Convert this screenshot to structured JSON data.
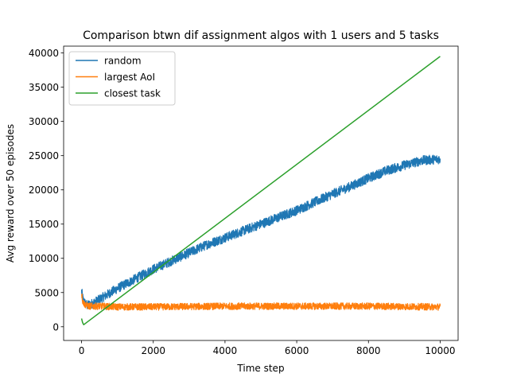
{
  "chart_data": {
    "type": "line",
    "title": "Comparison btwn dif assignment algos with 1 users and 5 tasks",
    "xlabel": "Time step",
    "ylabel": "Avg reward over 50 episodes",
    "xlim": [
      -500,
      10500
    ],
    "ylim": [
      -2000,
      41000
    ],
    "xticks": [
      0,
      2000,
      4000,
      6000,
      8000,
      10000
    ],
    "xtick_labels": [
      "0",
      "2000",
      "4000",
      "6000",
      "8000",
      "10000"
    ],
    "yticks": [
      0,
      5000,
      10000,
      15000,
      20000,
      25000,
      30000,
      35000,
      40000
    ],
    "ytick_labels": [
      "0",
      "5000",
      "10000",
      "15000",
      "20000",
      "25000",
      "30000",
      "35000",
      "40000"
    ],
    "grid": false,
    "legend_position": "top-left",
    "series": [
      {
        "name": "random",
        "color": "#1f77b4",
        "x": [
          0,
          50,
          150,
          300,
          500,
          1000,
          1500,
          2000,
          2500,
          3000,
          3500,
          4000,
          4500,
          5000,
          5500,
          6000,
          6500,
          7000,
          7500,
          8000,
          8500,
          9000,
          9500,
          10000
        ],
        "y": [
          5200,
          3800,
          3100,
          3400,
          4000,
          5600,
          7000,
          8400,
          9600,
          10800,
          12000,
          13000,
          14000,
          15000,
          16000,
          17000,
          18200,
          19400,
          20500,
          21700,
          22800,
          23600,
          24300,
          24500
        ],
        "noise": 700
      },
      {
        "name": "largest AoI",
        "color": "#ff7f0e",
        "x": [
          0,
          30,
          80,
          200,
          500,
          1000,
          2000,
          4000,
          6000,
          8000,
          10000
        ],
        "y": [
          5000,
          3800,
          3300,
          3000,
          3000,
          2900,
          2900,
          3000,
          3000,
          3000,
          2900
        ],
        "noise": 500
      },
      {
        "name": "closest task",
        "color": "#2ca02c",
        "x": [
          0,
          30,
          60,
          10000
        ],
        "y": [
          1200,
          600,
          300,
          39500
        ],
        "noise": 0
      }
    ]
  }
}
